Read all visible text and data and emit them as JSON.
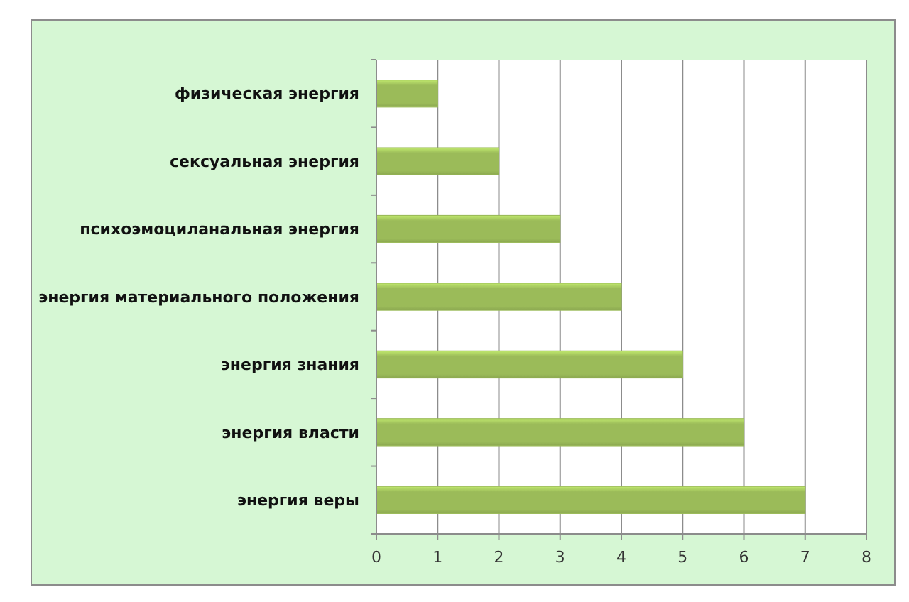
{
  "chart_data": {
    "type": "bar",
    "orientation": "horizontal",
    "categories": [
      "физическая энергия",
      "сексуальная энергия",
      "психоэмоциланальная энергия",
      "энергия материального положения",
      "энергия знания",
      "энергия власти",
      "энергия веры"
    ],
    "values": [
      1,
      2,
      3,
      4,
      5,
      6,
      7
    ],
    "color": "#9bbb59",
    "xlim": [
      0,
      8
    ],
    "xticks": [
      0,
      1,
      2,
      3,
      4,
      5,
      6,
      7,
      8
    ],
    "grid": "x"
  }
}
